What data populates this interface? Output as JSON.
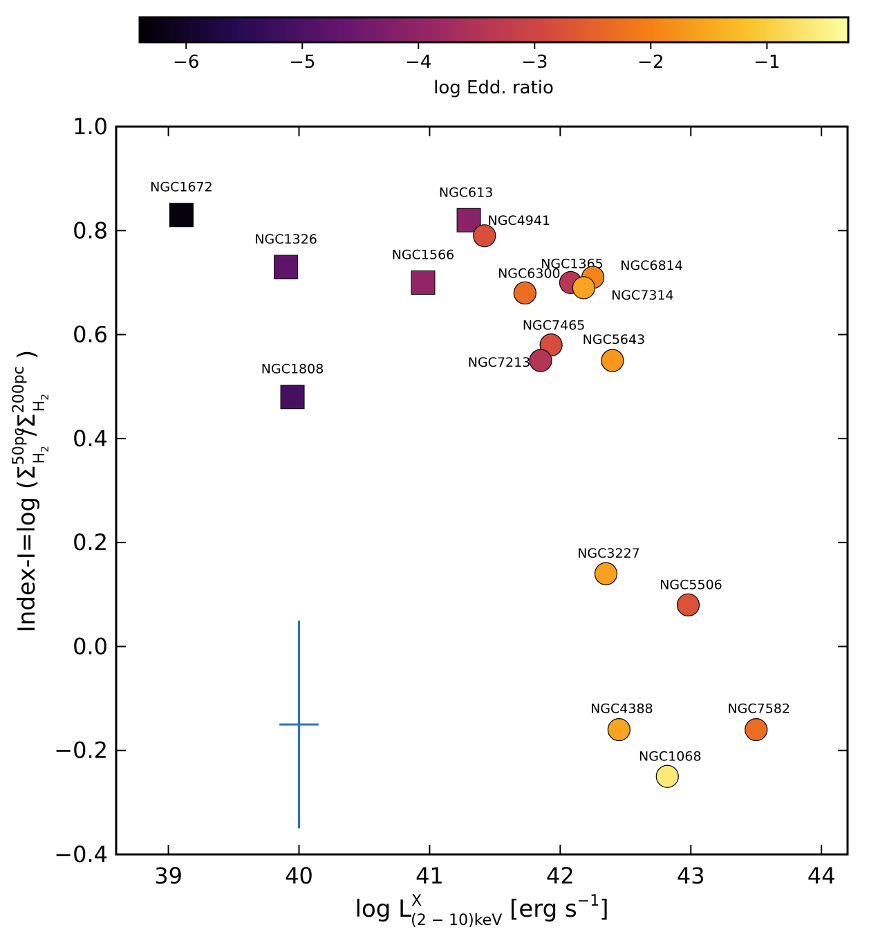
{
  "chart_data": {
    "type": "scatter",
    "xlabel": "log L^X_(2 − 10)keV [erg s^−1]",
    "xlabel_parts": {
      "base": "log L",
      "sup": "X",
      "sub": "(2 − 10)keV",
      "unit_pre": " [erg s",
      "unit_sup": "−1",
      "unit_post": "]"
    },
    "ylabel": "Index-I=log (Σ^50pc_H2/Σ^200pc_H2)",
    "ylabel_parts": {
      "pre": "Index-I=log (Σ",
      "sup1": "50pc",
      "sub1": "H",
      "sub1b": "2",
      "mid": "/Σ",
      "sup2": "200pc",
      "sub2": "H",
      "sub2b": "2",
      "post": ")"
    },
    "xlim": [
      38.6,
      44.2
    ],
    "ylim": [
      -0.4,
      1.0
    ],
    "xticks": [
      39,
      40,
      41,
      42,
      43,
      44
    ],
    "xtick_labels": [
      "39",
      "40",
      "41",
      "42",
      "43",
      "44"
    ],
    "yticks": [
      -0.4,
      -0.2,
      0.0,
      0.2,
      0.4,
      0.6,
      0.8,
      1.0
    ],
    "ytick_labels": [
      "−0.4",
      "−0.2",
      "0.0",
      "0.2",
      "0.4",
      "0.6",
      "0.8",
      "1.0"
    ],
    "colorbar": {
      "label": "log Edd. ratio",
      "range": [
        -6.4,
        -0.3
      ],
      "ticks": [
        -6,
        -5,
        -4,
        -3,
        -2,
        -1
      ],
      "tick_labels": [
        "−6",
        "−5",
        "−4",
        "−3",
        "−2",
        "−1"
      ],
      "colormap": "inferno",
      "stops": [
        "#000004",
        "#280b54",
        "#65156e",
        "#9f2a63",
        "#d44842",
        "#f57d15",
        "#fac228",
        "#fcffa4"
      ]
    },
    "errorbar": {
      "x": 40.0,
      "y": -0.15,
      "xerr": 0.15,
      "yerr": 0.2,
      "color": "#2a77b4"
    },
    "points": [
      {
        "name": "NGC1672",
        "x": 39.1,
        "y": 0.83,
        "marker": "square",
        "edd": -6.3
      },
      {
        "name": "NGC1326",
        "x": 39.9,
        "y": 0.73,
        "marker": "square",
        "edd": -4.75
      },
      {
        "name": "NGC1808",
        "x": 39.95,
        "y": 0.48,
        "marker": "square",
        "edd": -5.1
      },
      {
        "name": "NGC1566",
        "x": 40.95,
        "y": 0.7,
        "marker": "square",
        "edd": -4.0
      },
      {
        "name": "NGC613",
        "x": 41.3,
        "y": 0.82,
        "marker": "square",
        "edd": -4.1
      },
      {
        "name": "NGC4941",
        "x": 41.42,
        "y": 0.79,
        "marker": "circle",
        "edd": -2.8
      },
      {
        "name": "NGC6300",
        "x": 41.73,
        "y": 0.68,
        "marker": "circle",
        "edd": -2.3
      },
      {
        "name": "NGC1365",
        "x": 42.08,
        "y": 0.7,
        "marker": "circle",
        "edd": -3.4
      },
      {
        "name": "NGC6814",
        "x": 42.25,
        "y": 0.71,
        "marker": "circle",
        "edd": -1.95
      },
      {
        "name": "NGC7314",
        "x": 42.18,
        "y": 0.69,
        "marker": "circle",
        "edd": -1.55
      },
      {
        "name": "NGC7465",
        "x": 41.93,
        "y": 0.58,
        "marker": "circle",
        "edd": -2.85
      },
      {
        "name": "NGC7213",
        "x": 41.85,
        "y": 0.55,
        "marker": "circle",
        "edd": -3.45
      },
      {
        "name": "NGC5643",
        "x": 42.4,
        "y": 0.55,
        "marker": "circle",
        "edd": -1.7
      },
      {
        "name": "NGC3227",
        "x": 42.35,
        "y": 0.14,
        "marker": "circle",
        "edd": -1.6
      },
      {
        "name": "NGC5506",
        "x": 42.98,
        "y": 0.08,
        "marker": "circle",
        "edd": -2.75
      },
      {
        "name": "NGC4388",
        "x": 42.45,
        "y": -0.16,
        "marker": "circle",
        "edd": -1.55
      },
      {
        "name": "NGC7582",
        "x": 43.5,
        "y": -0.16,
        "marker": "circle",
        "edd": -2.3
      },
      {
        "name": "NGC1068",
        "x": 42.82,
        "y": -0.25,
        "marker": "circle",
        "edd": -0.6
      }
    ]
  }
}
